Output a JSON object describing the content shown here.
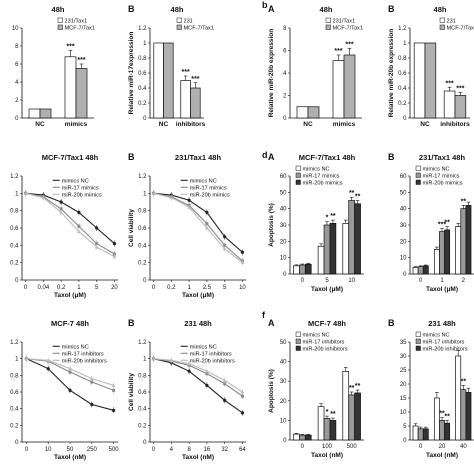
{
  "panel_letters": {
    "b": "b",
    "d": "d",
    "f": "f"
  },
  "chart_data": [
    {
      "id": "p1",
      "type": "bar",
      "title": "48h",
      "sublabel": "",
      "ylabel": "",
      "xlabel": "",
      "ylim": [
        0,
        10
      ],
      "yticks": [
        0,
        2,
        4,
        6,
        8,
        10
      ],
      "categories": [
        "NC",
        "mimics"
      ],
      "series": [
        {
          "name": "231/Tax1",
          "values": [
            1,
            6.8
          ],
          "errors": [
            0,
            0.7
          ],
          "fill": "#ffffff"
        },
        {
          "name": "MCF-7/Tax1",
          "values": [
            1,
            5.5
          ],
          "errors": [
            0,
            0.5
          ],
          "fill": "#b0b0b0"
        }
      ],
      "stars": [
        {
          "cat": 1,
          "series": 0,
          "text": "***"
        },
        {
          "cat": 1,
          "series": 1,
          "text": "***"
        }
      ],
      "legend": "top-right"
    },
    {
      "id": "p2",
      "type": "bar",
      "title": "48h",
      "sublabel": "B",
      "ylabel": "Relative miR-17expression",
      "xlabel": "",
      "ylim": [
        0,
        1.2
      ],
      "yticks": [
        0,
        0.2,
        0.4,
        0.6,
        0.8,
        1,
        1.2
      ],
      "ytickLabels": [
        "0",
        "0.2",
        "0.4",
        "0.6",
        "0.8",
        "1",
        "1.2"
      ],
      "categories": [
        "NC",
        "inhibitors"
      ],
      "series": [
        {
          "name": "231",
          "values": [
            1,
            0.5
          ],
          "errors": [
            0,
            0.06
          ],
          "fill": "#ffffff"
        },
        {
          "name": "MCF-7/Tax1",
          "values": [
            1,
            0.4
          ],
          "errors": [
            0,
            0.07
          ],
          "fill": "#b0b0b0"
        }
      ],
      "stars": [
        {
          "cat": 1,
          "series": 0,
          "text": "***"
        },
        {
          "cat": 1,
          "series": 1,
          "text": "***"
        }
      ],
      "legend": "top-right"
    },
    {
      "id": "p3",
      "type": "bar",
      "title": "48h",
      "sublabel": "A",
      "ylabel": "Relative miR-20b expression",
      "xlabel": "",
      "ylim": [
        0,
        8
      ],
      "yticks": [
        0,
        2,
        4,
        6,
        8
      ],
      "categories": [
        "NC",
        "mimics"
      ],
      "series": [
        {
          "name": "231/Tax1",
          "values": [
            1,
            5.1
          ],
          "errors": [
            0,
            0.5
          ],
          "fill": "#ffffff"
        },
        {
          "name": "MCF-7/Tax1",
          "values": [
            1,
            5.6
          ],
          "errors": [
            0,
            0.6
          ],
          "fill": "#b0b0b0"
        }
      ],
      "stars": [
        {
          "cat": 1,
          "series": 0,
          "text": "***"
        },
        {
          "cat": 1,
          "series": 1,
          "text": "***"
        }
      ],
      "legend": "top-right"
    },
    {
      "id": "p4",
      "type": "bar",
      "title": "48h",
      "sublabel": "B",
      "ylabel": "Relative miR-20b expression",
      "xlabel": "",
      "ylim": [
        0,
        1.2
      ],
      "yticks": [
        0,
        0.2,
        0.4,
        0.6,
        0.8,
        1,
        1.2
      ],
      "ytickLabels": [
        "0",
        "0.2",
        "0.4",
        "0.6",
        "0.8",
        "1",
        "1.2"
      ],
      "categories": [
        "NC",
        "inhibitors"
      ],
      "series": [
        {
          "name": "231",
          "values": [
            1,
            0.36
          ],
          "errors": [
            0,
            0.05
          ],
          "fill": "#ffffff"
        },
        {
          "name": "MCF-7/Tax1",
          "values": [
            1,
            0.3
          ],
          "errors": [
            0,
            0.04
          ],
          "fill": "#b0b0b0"
        }
      ],
      "stars": [
        {
          "cat": 1,
          "series": 0,
          "text": "***"
        },
        {
          "cat": 1,
          "series": 1,
          "text": "***"
        }
      ],
      "legend": "top-right"
    },
    {
      "id": "p5",
      "type": "line",
      "title": "MCF-7/Tax1 48h",
      "sublabel": "",
      "ylabel": "",
      "xlabel": "Taxol (μM)",
      "ylim": [
        0,
        1.2
      ],
      "yticks": [
        0,
        0.2,
        0.4,
        0.6,
        0.8,
        1,
        1.2
      ],
      "ytickLabels": [
        "0",
        "0.2",
        "0.4",
        "0.6",
        "0.8",
        "1",
        "1.2"
      ],
      "x": [
        "0",
        "0.04",
        "0.2",
        "1",
        "5",
        "20"
      ],
      "series": [
        {
          "name": "mimics NC",
          "values": [
            1,
            0.98,
            0.9,
            0.78,
            0.6,
            0.42
          ],
          "color": "#222222",
          "marker": "circle"
        },
        {
          "name": "miR-17 mimics",
          "values": [
            1,
            0.96,
            0.82,
            0.62,
            0.42,
            0.3
          ],
          "color": "#888888",
          "marker": "square"
        },
        {
          "name": "miR-20b mimics",
          "values": [
            1,
            0.95,
            0.78,
            0.56,
            0.38,
            0.27
          ],
          "color": "#bbbbbb",
          "marker": "triangle"
        }
      ],
      "legend": "top-right"
    },
    {
      "id": "p6",
      "type": "line",
      "title": "231/Tax1 48h",
      "sublabel": "B",
      "ylabel": "Cell viability",
      "xlabel": "Taxol (μM)",
      "ylim": [
        0,
        1.2
      ],
      "yticks": [
        0,
        0.2,
        0.4,
        0.6,
        0.8,
        1,
        1.2
      ],
      "ytickLabels": [
        "0",
        "0.2",
        "0.4",
        "0.6",
        "0.8",
        "1",
        "1.2"
      ],
      "x": [
        "0",
        "0.2",
        "1",
        "2.5",
        "5",
        "10"
      ],
      "series": [
        {
          "name": "mimics NC",
          "values": [
            1,
            0.98,
            0.92,
            0.78,
            0.5,
            0.32
          ],
          "color": "#222222",
          "marker": "circle"
        },
        {
          "name": "miR-17 mimics",
          "values": [
            1,
            0.96,
            0.86,
            0.65,
            0.4,
            0.22
          ],
          "color": "#888888",
          "marker": "square"
        },
        {
          "name": "miR-20b mimics",
          "values": [
            1,
            0.95,
            0.84,
            0.6,
            0.36,
            0.2
          ],
          "color": "#bbbbbb",
          "marker": "triangle"
        }
      ],
      "legend": "top-right"
    },
    {
      "id": "p7",
      "type": "bar",
      "title": "MCF-7/Tax1 48h",
      "sublabel": "A",
      "ylabel": "Apoptosis (%)",
      "xlabel": "Taxol (μM)",
      "ylim": [
        0,
        60
      ],
      "yticks": [
        0,
        10,
        20,
        30,
        40,
        50,
        60
      ],
      "categories": [
        "0",
        "5",
        "10"
      ],
      "series": [
        {
          "name": "mimics NC",
          "values": [
            5,
            17,
            31
          ],
          "errors": [
            0.6,
            1.5,
            2
          ],
          "fill": "#ffffff"
        },
        {
          "name": "miR-17 mimics",
          "values": [
            5.5,
            30,
            45
          ],
          "errors": [
            0.6,
            2,
            2
          ],
          "fill": "#999999"
        },
        {
          "name": "miR-20b mimics",
          "values": [
            6,
            31,
            43
          ],
          "errors": [
            0.6,
            2,
            2
          ],
          "fill": "#333333"
        }
      ],
      "stars": [
        {
          "cat": 1,
          "series": 1,
          "text": "*"
        },
        {
          "cat": 1,
          "series": 2,
          "text": "**"
        },
        {
          "cat": 2,
          "series": 1,
          "text": "**"
        },
        {
          "cat": 2,
          "series": 2,
          "text": "**"
        }
      ],
      "legend": "top-left"
    },
    {
      "id": "p8",
      "type": "bar",
      "title": "231/Tax1 48h",
      "sublabel": "B",
      "ylabel": "",
      "xlabel": "Taxol (μM)",
      "ylim": [
        0,
        60
      ],
      "yticks": [
        0,
        10,
        20,
        30,
        40,
        50,
        60
      ],
      "categories": [
        "0",
        "1",
        "2"
      ],
      "series": [
        {
          "name": "mimics NC",
          "values": [
            4,
            15,
            29
          ],
          "errors": [
            0.5,
            1.5,
            2
          ],
          "fill": "#ffffff"
        },
        {
          "name": "miR-17 mimics",
          "values": [
            4.5,
            26,
            40
          ],
          "errors": [
            0.5,
            2,
            2
          ],
          "fill": "#999999"
        },
        {
          "name": "miR-20b mimics",
          "values": [
            5,
            27,
            42
          ],
          "errors": [
            0.5,
            2,
            2
          ],
          "fill": "#333333"
        }
      ],
      "stars": [
        {
          "cat": 1,
          "series": 1,
          "text": "***"
        },
        {
          "cat": 1,
          "series": 2,
          "text": "**"
        },
        {
          "cat": 2,
          "series": 1,
          "text": "**"
        }
      ],
      "legend": "top-left"
    },
    {
      "id": "p9",
      "type": "line",
      "title": "MCF-7 48h",
      "sublabel": "",
      "ylabel": "",
      "xlabel": "Taxol (nM)",
      "ylim": [
        0,
        1.2
      ],
      "yticks": [
        0,
        0.2,
        0.4,
        0.6,
        0.8,
        1,
        1.2
      ],
      "ytickLabels": [
        "0",
        "0.2",
        "0.4",
        "0.6",
        "0.8",
        "1",
        "1.2"
      ],
      "x": [
        "0",
        "10",
        "50",
        "250",
        "500"
      ],
      "series": [
        {
          "name": "mimics NC",
          "values": [
            1,
            0.88,
            0.62,
            0.45,
            0.38
          ],
          "color": "#222222",
          "marker": "circle"
        },
        {
          "name": "miR-17 inhibitors",
          "values": [
            1,
            0.97,
            0.84,
            0.72,
            0.62
          ],
          "color": "#888888",
          "marker": "square"
        },
        {
          "name": "miR-20b inhibitors",
          "values": [
            1,
            0.98,
            0.88,
            0.76,
            0.68
          ],
          "color": "#bbbbbb",
          "marker": "triangle"
        }
      ],
      "legend": "top-right"
    },
    {
      "id": "p10",
      "type": "line",
      "title": "231 48h",
      "sublabel": "B",
      "ylabel": "Cell viability",
      "xlabel": "Taxol (nM)",
      "ylim": [
        0,
        1.2
      ],
      "yticks": [
        0,
        0.2,
        0.4,
        0.6,
        0.8,
        1,
        1.2
      ],
      "ytickLabels": [
        "0",
        "0.2",
        "0.4",
        "0.6",
        "0.8",
        "1",
        "1.2"
      ],
      "x": [
        "0",
        "4",
        "8",
        "16",
        "32",
        "64"
      ],
      "series": [
        {
          "name": "mimics NC",
          "values": [
            1,
            0.95,
            0.85,
            0.68,
            0.5,
            0.35
          ],
          "color": "#222222",
          "marker": "circle"
        },
        {
          "name": "miR-17 inhibitors",
          "values": [
            1,
            0.97,
            0.92,
            0.82,
            0.7,
            0.55
          ],
          "color": "#888888",
          "marker": "square"
        },
        {
          "name": "miR-20b inhibitors",
          "values": [
            1,
            0.98,
            0.94,
            0.85,
            0.74,
            0.6
          ],
          "color": "#bbbbbb",
          "marker": "triangle"
        }
      ],
      "legend": "top-right"
    },
    {
      "id": "p11",
      "type": "bar",
      "title": "MCF-7 48h",
      "sublabel": "A",
      "ylabel": "Apoptosis (%)",
      "xlabel": "Taxol (nM)",
      "ylim": [
        0,
        50
      ],
      "yticks": [
        0,
        10,
        20,
        30,
        40,
        50
      ],
      "categories": [
        "0",
        "100",
        "500"
      ],
      "series": [
        {
          "name": "mimics NC",
          "values": [
            3,
            17,
            35
          ],
          "errors": [
            0.4,
            1.5,
            2
          ],
          "fill": "#ffffff"
        },
        {
          "name": "miR-17 inhibitors",
          "values": [
            2.5,
            11,
            23
          ],
          "errors": [
            0.4,
            1.2,
            1.5
          ],
          "fill": "#999999"
        },
        {
          "name": "miR-20b inhibitors",
          "values": [
            2.5,
            10,
            24
          ],
          "errors": [
            0.4,
            1.2,
            1.5
          ],
          "fill": "#333333"
        }
      ],
      "stars": [
        {
          "cat": 1,
          "series": 1,
          "text": "*"
        },
        {
          "cat": 1,
          "series": 2,
          "text": "**"
        },
        {
          "cat": 2,
          "series": 1,
          "text": "**"
        },
        {
          "cat": 2,
          "series": 2,
          "text": "**"
        }
      ],
      "legend": "top-left"
    },
    {
      "id": "p12",
      "type": "bar",
      "title": "231 48h",
      "sublabel": "B",
      "ylabel": "",
      "xlabel": "Taxol (nM)",
      "ylim": [
        0,
        35
      ],
      "yticks": [
        0,
        5,
        10,
        15,
        20,
        25,
        30,
        35
      ],
      "categories": [
        "0",
        "20",
        "40"
      ],
      "series": [
        {
          "name": "mimics NC",
          "values": [
            5,
            15,
            30
          ],
          "errors": [
            0.8,
            2,
            2
          ],
          "fill": "#ffffff"
        },
        {
          "name": "miR-17 inhibitors",
          "values": [
            4,
            7,
            18
          ],
          "errors": [
            0.6,
            1,
            1.5
          ],
          "fill": "#999999"
        },
        {
          "name": "miR-20b inhibitors",
          "values": [
            4,
            6,
            17
          ],
          "errors": [
            0.6,
            1,
            1.5
          ],
          "fill": "#333333"
        }
      ],
      "stars": [
        {
          "cat": 1,
          "series": 1,
          "text": "**"
        },
        {
          "cat": 1,
          "series": 2,
          "text": "**"
        },
        {
          "cat": 2,
          "series": 1,
          "text": "**"
        }
      ],
      "legend": "top-left"
    }
  ]
}
